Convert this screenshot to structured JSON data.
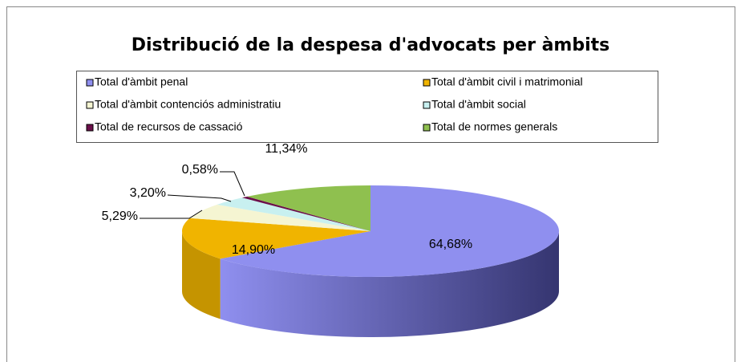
{
  "chart_data": {
    "type": "pie3d",
    "title": "Distribució de la despesa d'advocats per àmbits",
    "categories": [
      "Total d'àmbit penal",
      "Total d'àmbit civil i matrimonial",
      "Total d'àmbit contenciós administratiu",
      "Total d'àmbit social",
      "Total de recursos de cassació",
      "Total de normes generals"
    ],
    "values": [
      64.68,
      14.9,
      5.29,
      3.2,
      0.58,
      11.34
    ],
    "value_labels": [
      "64,68%",
      "14,90%",
      "5,29%",
      "3,20%",
      "0,58%",
      "11,34%"
    ],
    "colors": [
      "#8f8fef",
      "#f0b400",
      "#f5f5d2",
      "#c8f0f0",
      "#6b0f4a",
      "#8fc04f"
    ],
    "legend": "top"
  }
}
